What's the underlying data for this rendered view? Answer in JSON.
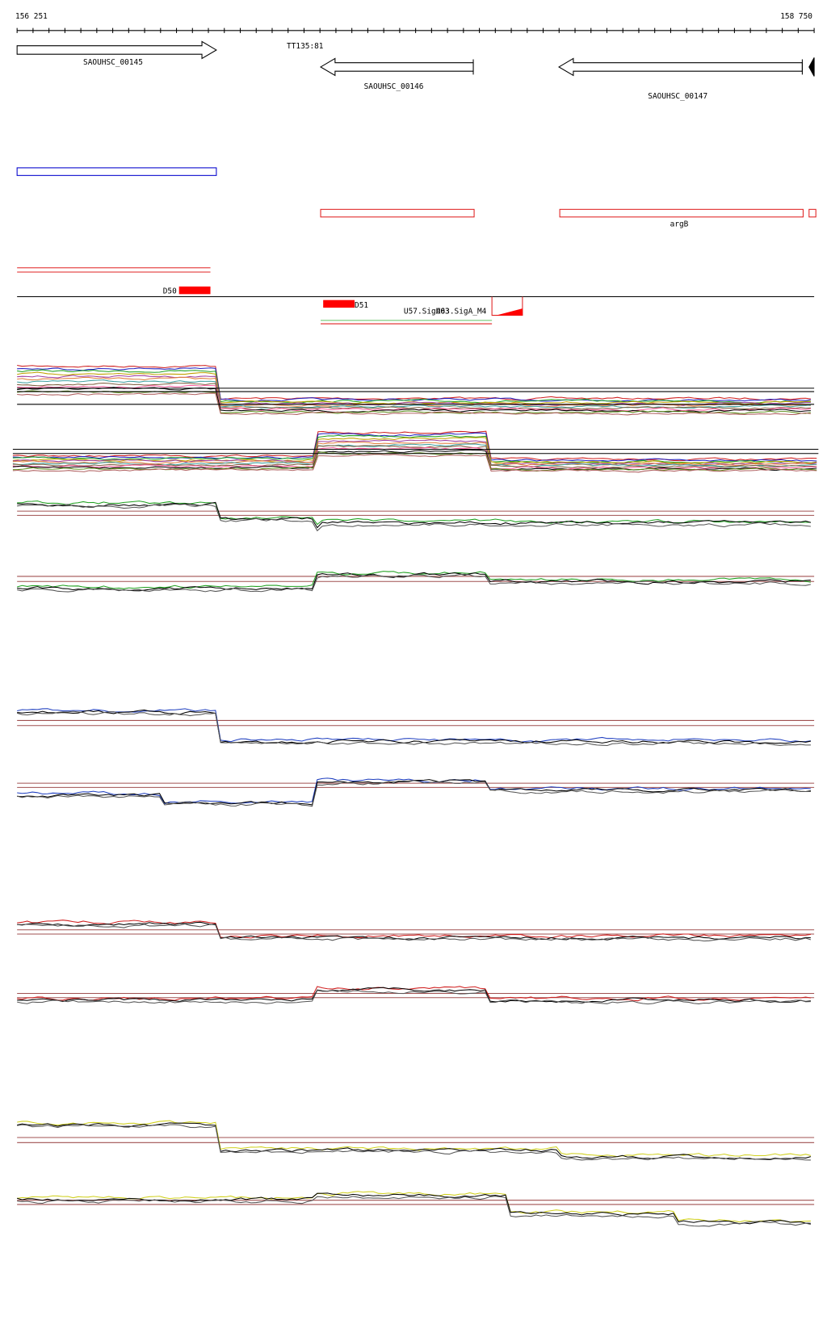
{
  "ruler": {
    "start": "156 251",
    "end": "158 750"
  },
  "genes": [
    {
      "label": "SAOUHSC_00145"
    },
    {
      "label": "SAOUHSC_00146"
    },
    {
      "label": "SAOUHSC_00147"
    }
  ],
  "terminator": "TT135:81",
  "operon": "argB",
  "regions": [
    "D50",
    "D51"
  ],
  "promoters": [
    "U57.SigA03",
    "U63.SigA_M4"
  ]
}
